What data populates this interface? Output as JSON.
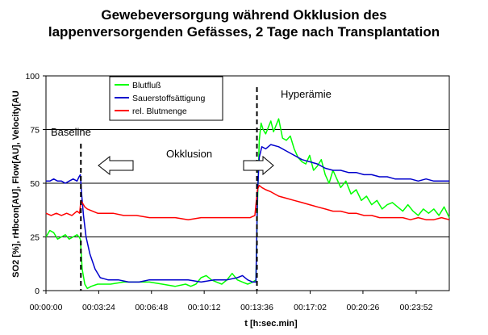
{
  "chart_data": {
    "type": "line",
    "title_lines": [
      "Gewebeversorgung während Okklusion des",
      "lappenversorgenden Gefässes, 2 Tage nach Transplantation"
    ],
    "xlabel": "t [h:sec.min]",
    "ylabel": "SO2 [%], rHbcon[AU], Flow[AU], Velocity[AU",
    "ylim": [
      0,
      100
    ],
    "yticks": [
      0,
      25,
      50,
      75,
      100
    ],
    "xlim": [
      0,
      1560
    ],
    "xtick_labels": [
      "00:00:00",
      "00:03:24",
      "00:06:48",
      "00:10:12",
      "00:13:36",
      "00:17:02",
      "00:20:26",
      "00:23:52"
    ],
    "xtick_values": [
      0,
      204,
      408,
      612,
      816,
      1022,
      1226,
      1432
    ],
    "grid": "horizontal",
    "legend_position": "top-left",
    "annotations": {
      "baseline": "Baseline",
      "okklusion": "Okklusion",
      "hyperaemie": "Hyperämie"
    },
    "event_lines_x": [
      135,
      816
    ],
    "series": [
      {
        "name": "Blutfluß",
        "color": "#00ff00",
        "x": [
          0,
          15,
          30,
          45,
          60,
          75,
          90,
          105,
          120,
          128,
          133,
          140,
          150,
          160,
          175,
          200,
          250,
          300,
          350,
          400,
          450,
          500,
          540,
          560,
          580,
          600,
          620,
          640,
          660,
          680,
          700,
          720,
          740,
          760,
          780,
          800,
          812,
          818,
          825,
          832,
          840,
          850,
          860,
          870,
          880,
          890,
          900,
          915,
          930,
          945,
          960,
          975,
          990,
          1005,
          1020,
          1035,
          1050,
          1065,
          1080,
          1095,
          1110,
          1125,
          1140,
          1160,
          1180,
          1200,
          1220,
          1240,
          1260,
          1280,
          1300,
          1320,
          1340,
          1360,
          1380,
          1400,
          1420,
          1440,
          1460,
          1480,
          1500,
          1520,
          1540,
          1560
        ],
        "values": [
          25,
          28,
          27,
          24,
          25,
          26,
          24,
          25,
          26,
          25,
          24,
          10,
          3,
          1,
          2,
          3,
          3,
          4,
          4,
          4,
          3,
          2,
          3,
          2,
          3,
          6,
          7,
          5,
          4,
          3,
          5,
          8,
          5,
          4,
          3,
          4,
          5,
          40,
          70,
          78,
          75,
          73,
          76,
          79,
          74,
          77,
          80,
          71,
          70,
          72,
          66,
          62,
          60,
          59,
          63,
          56,
          58,
          61,
          54,
          50,
          56,
          52,
          48,
          51,
          45,
          47,
          42,
          44,
          40,
          42,
          38,
          40,
          41,
          39,
          37,
          40,
          37,
          35,
          38,
          36,
          38,
          35,
          39,
          34
        ]
      },
      {
        "name": "Sauerstoffsättigung",
        "color": "#0000cc",
        "x": [
          0,
          15,
          30,
          45,
          60,
          75,
          90,
          105,
          120,
          128,
          133,
          138,
          145,
          155,
          170,
          190,
          210,
          240,
          280,
          320,
          360,
          400,
          450,
          500,
          550,
          600,
          650,
          700,
          740,
          760,
          780,
          800,
          812,
          818,
          825,
          835,
          850,
          870,
          900,
          930,
          960,
          990,
          1020,
          1050,
          1080,
          1110,
          1140,
          1170,
          1200,
          1230,
          1260,
          1290,
          1320,
          1350,
          1380,
          1410,
          1440,
          1470,
          1500,
          1530,
          1560
        ],
        "values": [
          51,
          51,
          52,
          51,
          51,
          50,
          51,
          52,
          51,
          53,
          54,
          45,
          35,
          25,
          17,
          10,
          6,
          5,
          5,
          4,
          4,
          5,
          5,
          5,
          5,
          4,
          5,
          5,
          6,
          7,
          5,
          4,
          4,
          45,
          62,
          67,
          66,
          68,
          67,
          65,
          63,
          61,
          60,
          59,
          57,
          56,
          56,
          55,
          55,
          54,
          54,
          53,
          53,
          52,
          52,
          52,
          51,
          52,
          51,
          51,
          51
        ]
      },
      {
        "name": "rel. Blutmenge",
        "color": "#ff0000",
        "x": [
          0,
          20,
          40,
          60,
          80,
          100,
          120,
          130,
          135,
          140,
          150,
          160,
          180,
          200,
          230,
          260,
          300,
          350,
          400,
          450,
          500,
          550,
          600,
          650,
          700,
          750,
          790,
          808,
          812,
          818,
          825,
          835,
          850,
          870,
          900,
          930,
          960,
          990,
          1020,
          1050,
          1080,
          1110,
          1140,
          1170,
          1200,
          1230,
          1260,
          1290,
          1320,
          1350,
          1380,
          1410,
          1440,
          1470,
          1500,
          1530,
          1560
        ],
        "values": [
          36,
          35,
          36,
          35,
          36,
          35,
          37,
          36,
          42,
          41,
          39,
          38,
          37,
          36,
          36,
          36,
          35,
          35,
          34,
          34,
          34,
          33,
          34,
          34,
          34,
          34,
          34,
          35,
          40,
          47,
          49,
          48,
          47,
          46,
          44,
          43,
          42,
          41,
          40,
          39,
          38,
          37,
          37,
          36,
          36,
          35,
          35,
          34,
          34,
          34,
          34,
          33,
          34,
          33,
          33,
          34,
          33
        ]
      }
    ]
  }
}
